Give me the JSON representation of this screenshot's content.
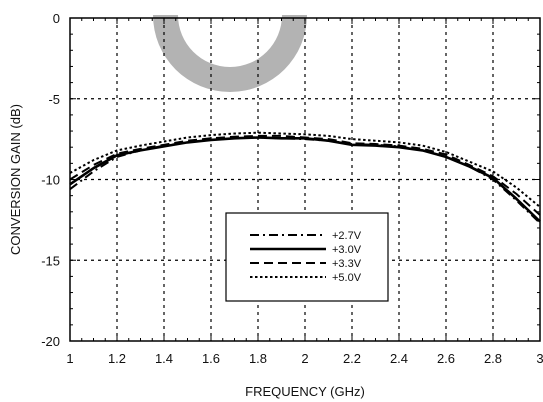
{
  "chart_data": {
    "type": "line",
    "xlabel": "FREQUENCY (GHz)",
    "ylabel": "CONVERSION GAIN (dB)",
    "xlim": [
      1,
      3
    ],
    "ylim": [
      -20,
      0
    ],
    "xticks": [
      "1",
      "1.2",
      "1.4",
      "1.6",
      "1.8",
      "2",
      "2.2",
      "2.4",
      "2.6",
      "2.8",
      "3"
    ],
    "yticks": [
      "0",
      "-5",
      "-10",
      "-15",
      "-20"
    ],
    "grid": true,
    "legend_position": "lower-center",
    "watermark_color": "#b3b3b3",
    "x": [
      1.0,
      1.1,
      1.2,
      1.3,
      1.4,
      1.5,
      1.6,
      1.7,
      1.8,
      1.9,
      2.0,
      2.1,
      2.2,
      2.3,
      2.4,
      2.5,
      2.6,
      2.7,
      2.8,
      2.9,
      3.0
    ],
    "series": [
      {
        "name": "+2.7V",
        "dash": "dashdot",
        "values": [
          -10.6,
          -9.5,
          -8.6,
          -8.2,
          -7.9,
          -7.7,
          -7.55,
          -7.45,
          -7.4,
          -7.45,
          -7.5,
          -7.6,
          -7.8,
          -7.85,
          -7.95,
          -8.2,
          -8.6,
          -9.2,
          -10.0,
          -11.3,
          -12.7
        ]
      },
      {
        "name": "+3.0V",
        "dash": "solid",
        "values": [
          -10.3,
          -9.3,
          -8.5,
          -8.2,
          -7.95,
          -7.7,
          -7.55,
          -7.45,
          -7.4,
          -7.45,
          -7.45,
          -7.6,
          -7.85,
          -7.9,
          -8.0,
          -8.2,
          -8.6,
          -9.2,
          -9.9,
          -11.2,
          -12.6
        ]
      },
      {
        "name": "+3.3V",
        "dash": "dashed",
        "values": [
          -10.0,
          -9.1,
          -8.4,
          -8.1,
          -7.85,
          -7.6,
          -7.45,
          -7.35,
          -7.3,
          -7.3,
          -7.4,
          -7.5,
          -7.75,
          -7.8,
          -7.9,
          -8.1,
          -8.45,
          -9.1,
          -9.8,
          -10.9,
          -12.2
        ]
      },
      {
        "name": "+5.0V",
        "dash": "dotted",
        "values": [
          -9.6,
          -8.8,
          -8.2,
          -7.9,
          -7.65,
          -7.4,
          -7.25,
          -7.15,
          -7.1,
          -7.15,
          -7.2,
          -7.3,
          -7.5,
          -7.6,
          -7.7,
          -7.9,
          -8.3,
          -8.9,
          -9.5,
          -10.5,
          -11.7
        ]
      }
    ]
  }
}
